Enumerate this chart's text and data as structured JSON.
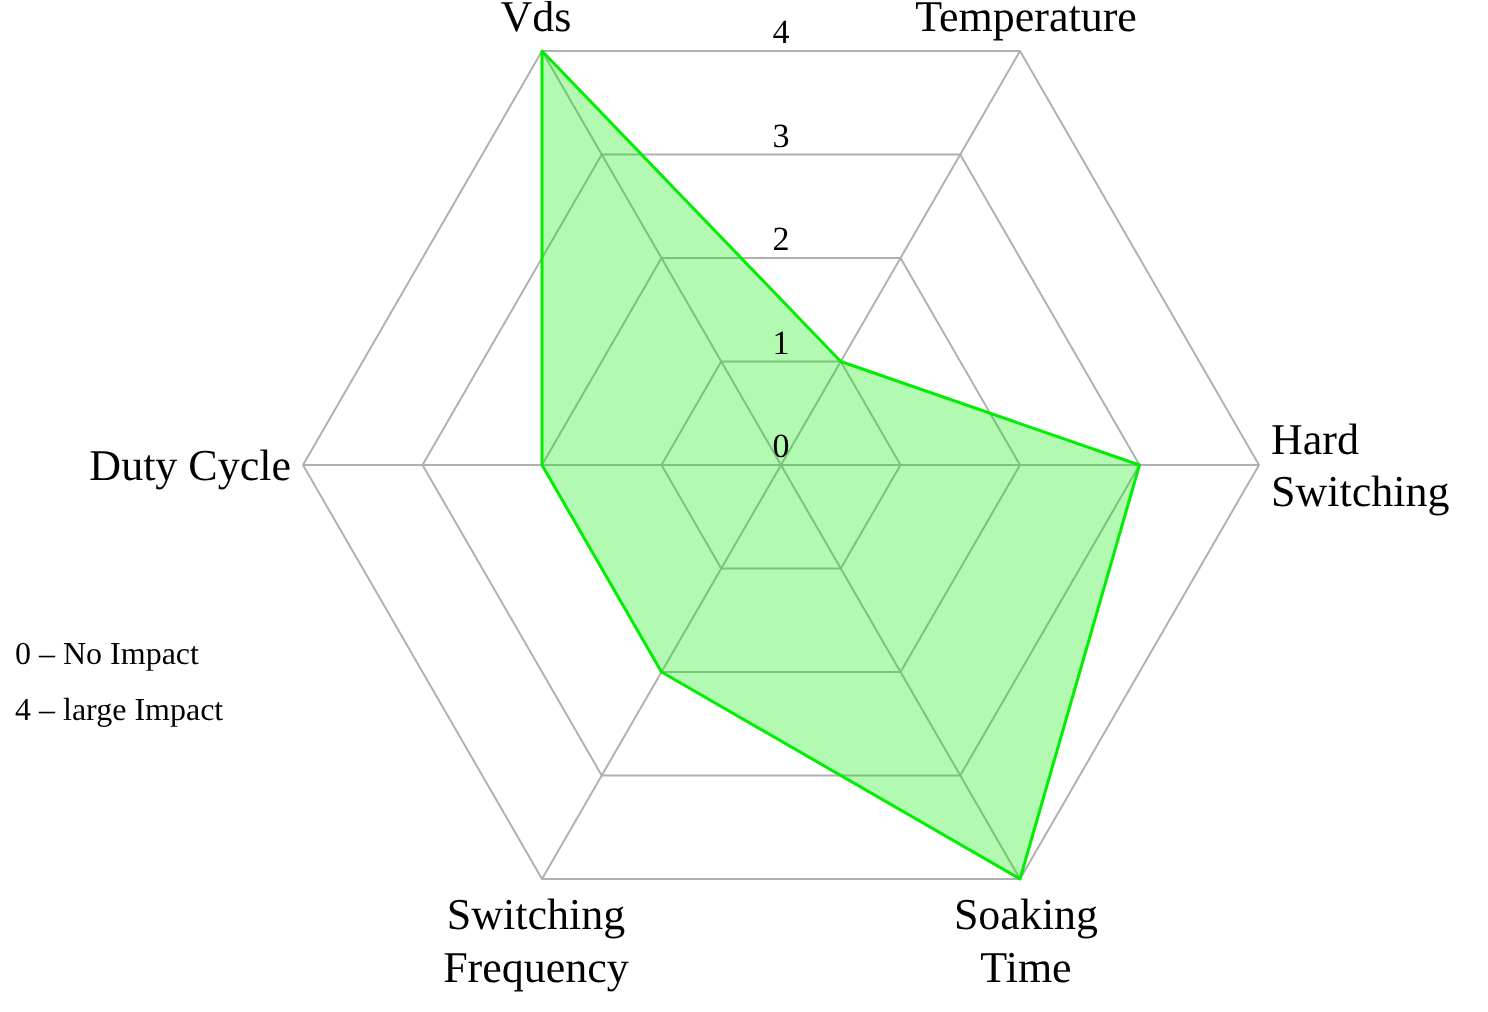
{
  "chart_data": {
    "type": "radar",
    "categories": [
      "Vds",
      "Temperature",
      "Hard\nSwitching",
      "Soaking\nTime",
      "Switching\nFrequency",
      "Duty Cycle"
    ],
    "series": [
      {
        "color": "#00ee00",
        "values": [
          4,
          1,
          3,
          4,
          2,
          2
        ]
      }
    ],
    "ylim": [
      0,
      4
    ],
    "yticks": [
      0,
      1,
      2,
      3,
      4
    ],
    "annotations": [
      "0 – No Impact",
      "4 – large Impact"
    ]
  }
}
